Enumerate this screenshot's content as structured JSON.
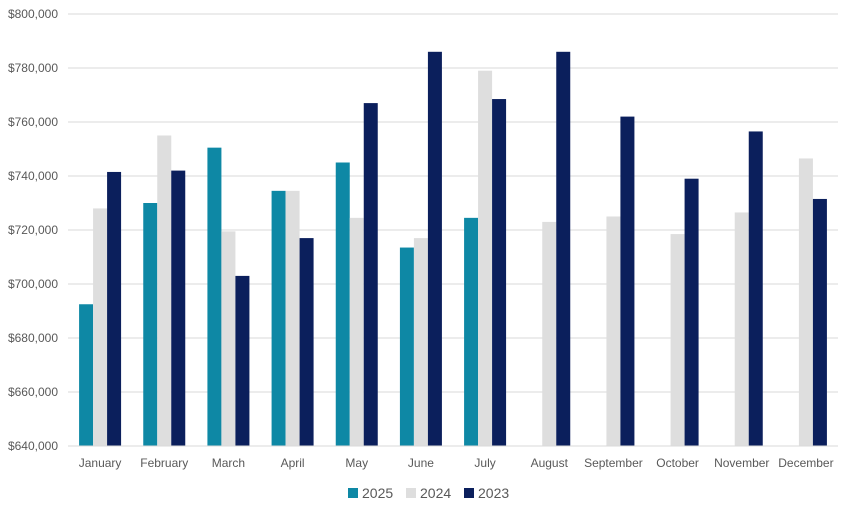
{
  "chart_data": {
    "type": "bar",
    "categories": [
      "January",
      "February",
      "March",
      "April",
      "May",
      "June",
      "July",
      "August",
      "September",
      "October",
      "November",
      "December"
    ],
    "series": [
      {
        "name": "2025",
        "color": "#0e88a5",
        "values": [
          692500,
          730000,
          750500,
          734500,
          745000,
          713500,
          724500,
          null,
          null,
          null,
          null,
          null
        ]
      },
      {
        "name": "2024",
        "color": "#dedede",
        "values": [
          728000,
          755000,
          719500,
          734500,
          724500,
          717000,
          779000,
          723000,
          725000,
          718500,
          726500,
          746500
        ]
      },
      {
        "name": "2023",
        "color": "#0b1f5c",
        "values": [
          741500,
          742000,
          703000,
          717000,
          767000,
          786000,
          768500,
          786000,
          762000,
          739000,
          756500,
          731500
        ]
      }
    ],
    "ylim": [
      640000,
      800000
    ],
    "yticks": [
      640000,
      660000,
      680000,
      700000,
      720000,
      740000,
      760000,
      780000,
      800000
    ],
    "ytick_labels": [
      "$640,000",
      "$660,000",
      "$680,000",
      "$700,000",
      "$720,000",
      "$740,000",
      "$760,000",
      "$780,000",
      "$800,000"
    ],
    "grid": true,
    "legend_position": "bottom"
  }
}
